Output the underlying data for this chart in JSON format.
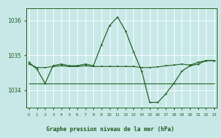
{
  "title": "Graphe pression niveau de la mer (hPa)",
  "bg_color": "#c8e8e8",
  "grid_color": "#ffffff",
  "line_color": "#1a5c1a",
  "line1_x": [
    0,
    1,
    2,
    3,
    4,
    5,
    6,
    7,
    8,
    9,
    10,
    11,
    12,
    13,
    14,
    15,
    16,
    17,
    18,
    19,
    20,
    21,
    22,
    23
  ],
  "line1_y": [
    1034.8,
    1034.6,
    1034.2,
    1034.7,
    1034.75,
    1034.7,
    1034.7,
    1034.75,
    1034.7,
    1035.3,
    1035.85,
    1036.1,
    1035.7,
    1035.1,
    1034.55,
    1033.65,
    1033.65,
    1033.9,
    1034.2,
    1034.55,
    1034.7,
    1034.75,
    1034.85,
    1034.85
  ],
  "line2_x": [
    0,
    1,
    2,
    3,
    4,
    5,
    6,
    7,
    8,
    9,
    10,
    11,
    12,
    13,
    14,
    15,
    16,
    17,
    18,
    19,
    20,
    21,
    22,
    23
  ],
  "line2_y": [
    1034.75,
    1034.65,
    1034.65,
    1034.68,
    1034.7,
    1034.68,
    1034.68,
    1034.7,
    1034.68,
    1034.68,
    1034.68,
    1034.68,
    1034.68,
    1034.68,
    1034.65,
    1034.65,
    1034.67,
    1034.7,
    1034.72,
    1034.75,
    1034.72,
    1034.8,
    1034.85,
    1034.85
  ],
  "line3_x": [
    0,
    1,
    2,
    3,
    4,
    5,
    6,
    7,
    8,
    9,
    10,
    11,
    12,
    13,
    14,
    15,
    16,
    17,
    18,
    19,
    20,
    21,
    22,
    23
  ],
  "line3_y": [
    1034.2,
    1034.2,
    1034.2,
    1034.2,
    1034.2,
    1034.2,
    1034.2,
    1034.2,
    1034.2,
    1034.2,
    1034.2,
    1034.2,
    1034.2,
    1034.2,
    1034.2,
    1034.2,
    1034.2,
    1034.2,
    1034.2,
    1034.2,
    1034.2,
    1034.2,
    1034.2,
    1034.2
  ],
  "yticks": [
    1034,
    1035,
    1036
  ],
  "xticks": [
    0,
    1,
    2,
    3,
    4,
    5,
    6,
    7,
    8,
    9,
    10,
    11,
    12,
    13,
    14,
    15,
    16,
    17,
    18,
    19,
    20,
    21,
    22,
    23
  ],
  "xlim": [
    -0.3,
    23.3
  ],
  "ylim": [
    1033.5,
    1036.35
  ],
  "figsize": [
    3.2,
    2.0
  ],
  "dpi": 100
}
